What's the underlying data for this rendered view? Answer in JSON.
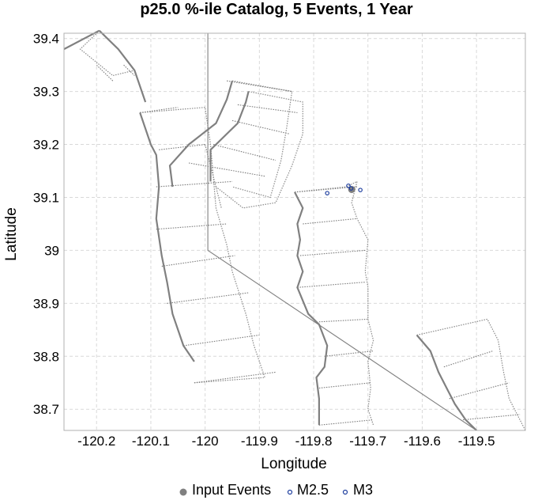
{
  "chart_data": {
    "type": "scatter",
    "title": "p25.0 %-ile Catalog, 5 Events, 1 Year",
    "xlabel": "Longitude",
    "ylabel": "Latitude",
    "xlim": [
      -120.26,
      -119.41
    ],
    "ylim": [
      38.66,
      39.41
    ],
    "x_ticks": [
      -120.2,
      -120.1,
      -120,
      -119.9,
      -119.8,
      -119.7,
      -119.6,
      -119.5
    ],
    "x_tick_labels": [
      "-120.2",
      "-120.1",
      "-120",
      "-119.9",
      "-119.8",
      "-119.7",
      "-119.6",
      "-119.5"
    ],
    "y_ticks": [
      39.4,
      39.3,
      39.2,
      39.1,
      39.0,
      38.9,
      38.8,
      38.7
    ],
    "y_tick_labels": [
      "39.4",
      "39.3",
      "39.2",
      "39.1",
      "39",
      "38.9",
      "38.8",
      "38.7"
    ],
    "grid": true,
    "legend_position": "bottom-center",
    "series": [
      {
        "name": "Input Events",
        "color": "#808080",
        "marker": "filled-circle",
        "points": [
          [
            -119.73,
            39.115
          ]
        ]
      },
      {
        "name": "M2.5",
        "color": "#1f3f9f",
        "marker": "open-circle",
        "points": [
          [
            -119.775,
            39.108
          ],
          [
            -119.736,
            39.122
          ],
          [
            -119.714,
            39.114
          ]
        ]
      },
      {
        "name": "M3",
        "color": "#1f3f9f",
        "marker": "open-circle",
        "points": [
          [
            -119.731,
            39.117
          ]
        ]
      }
    ],
    "fault_traces": [
      [
        [
          -120.26,
          39.38
        ],
        [
          -120.195,
          39.415
        ]
      ],
      [
        [
          -120.195,
          39.415
        ],
        [
          -120.16,
          39.38
        ],
        [
          -120.13,
          39.34
        ],
        [
          -120.11,
          39.28
        ]
      ],
      [
        [
          -120.12,
          39.26
        ],
        [
          -120.1,
          39.2
        ],
        [
          -120.09,
          39.18
        ],
        [
          -120.085,
          39.12
        ],
        [
          -120.09,
          39.06
        ],
        [
          -120.08,
          38.99
        ],
        [
          -120.07,
          38.94
        ],
        [
          -120.06,
          38.88
        ],
        [
          -120.04,
          38.82
        ],
        [
          -120.02,
          38.79
        ]
      ],
      [
        [
          -120.06,
          39.12
        ],
        [
          -120.065,
          39.16
        ],
        [
          -120.03,
          39.2
        ],
        [
          -119.98,
          39.24
        ],
        [
          -119.96,
          39.285
        ],
        [
          -119.95,
          39.32
        ]
      ],
      [
        [
          -119.99,
          39.13
        ],
        [
          -119.99,
          39.19
        ],
        [
          -119.94,
          39.24
        ],
        [
          -119.925,
          39.28
        ],
        [
          -119.92,
          39.3
        ]
      ],
      [
        [
          -119.835,
          39.11
        ],
        [
          -119.82,
          39.08
        ],
        [
          -119.83,
          39.05
        ],
        [
          -119.825,
          39.02
        ],
        [
          -119.83,
          38.99
        ],
        [
          -119.82,
          38.96
        ],
        [
          -119.83,
          38.93
        ],
        [
          -119.81,
          38.88
        ],
        [
          -119.79,
          38.86
        ],
        [
          -119.775,
          38.82
        ],
        [
          -119.78,
          38.78
        ],
        [
          -119.795,
          38.76
        ],
        [
          -119.79,
          38.72
        ],
        [
          -119.79,
          38.67
        ]
      ],
      [
        [
          -119.61,
          38.84
        ],
        [
          -119.585,
          38.81
        ],
        [
          -119.57,
          38.77
        ],
        [
          -119.555,
          38.74
        ],
        [
          -119.54,
          38.71
        ],
        [
          -119.52,
          38.68
        ],
        [
          -119.5,
          38.66
        ]
      ],
      [
        [
          -119.995,
          39.41
        ],
        [
          -119.995,
          39.0
        ],
        [
          -119.5,
          38.66
        ]
      ]
    ],
    "zone_lines": [
      [
        [
          -120.15,
          39.35
        ],
        [
          -120.13,
          39.33
        ]
      ],
      [
        [
          -120.17,
          39.32
        ],
        [
          -120.2,
          39.35
        ]
      ],
      [
        [
          -120.12,
          39.26
        ],
        [
          -120.05,
          39.27
        ]
      ],
      [
        [
          -120.085,
          39.19
        ],
        [
          -120.0,
          39.2
        ]
      ],
      [
        [
          -120.09,
          39.12
        ],
        [
          -119.95,
          39.13
        ]
      ],
      [
        [
          -120.09,
          39.04
        ],
        [
          -119.96,
          39.05
        ]
      ],
      [
        [
          -120.08,
          38.97
        ],
        [
          -119.945,
          38.99
        ]
      ],
      [
        [
          -120.07,
          38.9
        ],
        [
          -119.92,
          38.92
        ]
      ],
      [
        [
          -120.04,
          38.82
        ],
        [
          -119.9,
          38.84
        ]
      ],
      [
        [
          -120.02,
          38.75
        ],
        [
          -119.87,
          38.77
        ]
      ],
      [
        [
          -119.96,
          39.32
        ],
        [
          -119.84,
          39.3
        ]
      ],
      [
        [
          -119.94,
          39.275
        ],
        [
          -119.83,
          39.26
        ]
      ],
      [
        [
          -119.95,
          39.245
        ],
        [
          -119.845,
          39.22
        ]
      ],
      [
        [
          -119.985,
          39.2
        ],
        [
          -119.87,
          39.17
        ]
      ],
      [
        [
          -120.03,
          39.165
        ],
        [
          -119.89,
          39.14
        ]
      ],
      [
        [
          -119.835,
          39.11
        ],
        [
          -119.72,
          39.12
        ]
      ],
      [
        [
          -119.82,
          39.05
        ],
        [
          -119.72,
          39.06
        ]
      ],
      [
        [
          -119.825,
          38.99
        ],
        [
          -119.705,
          39.0
        ]
      ],
      [
        [
          -119.83,
          38.93
        ],
        [
          -119.705,
          38.94
        ]
      ],
      [
        [
          -119.79,
          38.865
        ],
        [
          -119.7,
          38.87
        ]
      ],
      [
        [
          -119.78,
          38.8
        ],
        [
          -119.69,
          38.81
        ]
      ],
      [
        [
          -119.79,
          38.74
        ],
        [
          -119.695,
          38.75
        ]
      ],
      [
        [
          -119.79,
          38.67
        ],
        [
          -119.69,
          38.68
        ]
      ],
      [
        [
          -119.56,
          38.78
        ],
        [
          -119.47,
          38.81
        ]
      ],
      [
        [
          -119.55,
          38.72
        ],
        [
          -119.44,
          38.75
        ]
      ],
      [
        [
          -119.525,
          38.68
        ],
        [
          -119.42,
          38.69
        ]
      ]
    ],
    "zone_outlines": [
      [
        [
          -120.195,
          39.415
        ],
        [
          -120.23,
          39.38
        ],
        [
          -120.17,
          39.33
        ],
        [
          -120.13,
          39.34
        ]
      ],
      [
        [
          -119.95,
          39.32
        ],
        [
          -119.84,
          39.3
        ],
        [
          -119.85,
          39.23
        ],
        [
          -119.86,
          39.17
        ],
        [
          -119.88,
          39.1
        ],
        [
          -119.95,
          39.12
        ]
      ],
      [
        [
          -119.92,
          39.3
        ],
        [
          -119.82,
          39.28
        ],
        [
          -119.82,
          39.22
        ],
        [
          -119.84,
          39.16
        ],
        [
          -119.87,
          39.09
        ],
        [
          -119.93,
          39.08
        ],
        [
          -119.98,
          39.12
        ]
      ],
      [
        [
          -120.0,
          39.2
        ],
        [
          -119.97,
          39.08
        ]
      ],
      [
        [
          -120.12,
          39.26
        ],
        [
          -120.0,
          39.27
        ],
        [
          -119.99,
          39.2
        ],
        [
          -119.98,
          39.08
        ],
        [
          -119.96,
          39.01
        ],
        [
          -119.95,
          38.96
        ],
        [
          -119.925,
          38.88
        ],
        [
          -119.91,
          38.82
        ],
        [
          -119.89,
          38.76
        ],
        [
          -120.02,
          38.75
        ]
      ],
      [
        [
          -119.835,
          39.11
        ],
        [
          -119.74,
          39.12
        ],
        [
          -119.72,
          39.13
        ],
        [
          -119.73,
          39.09
        ],
        [
          -119.72,
          39.06
        ],
        [
          -119.7,
          39.02
        ],
        [
          -119.705,
          38.96
        ],
        [
          -119.7,
          38.93
        ],
        [
          -119.7,
          38.87
        ],
        [
          -119.69,
          38.83
        ],
        [
          -119.7,
          38.79
        ],
        [
          -119.695,
          38.74
        ],
        [
          -119.7,
          38.7
        ],
        [
          -119.69,
          38.67
        ]
      ],
      [
        [
          -119.61,
          38.84
        ],
        [
          -119.48,
          38.87
        ],
        [
          -119.46,
          38.83
        ],
        [
          -119.45,
          38.77
        ],
        [
          -119.44,
          38.72
        ],
        [
          -119.42,
          38.68
        ],
        [
          -119.41,
          38.66
        ]
      ]
    ]
  }
}
